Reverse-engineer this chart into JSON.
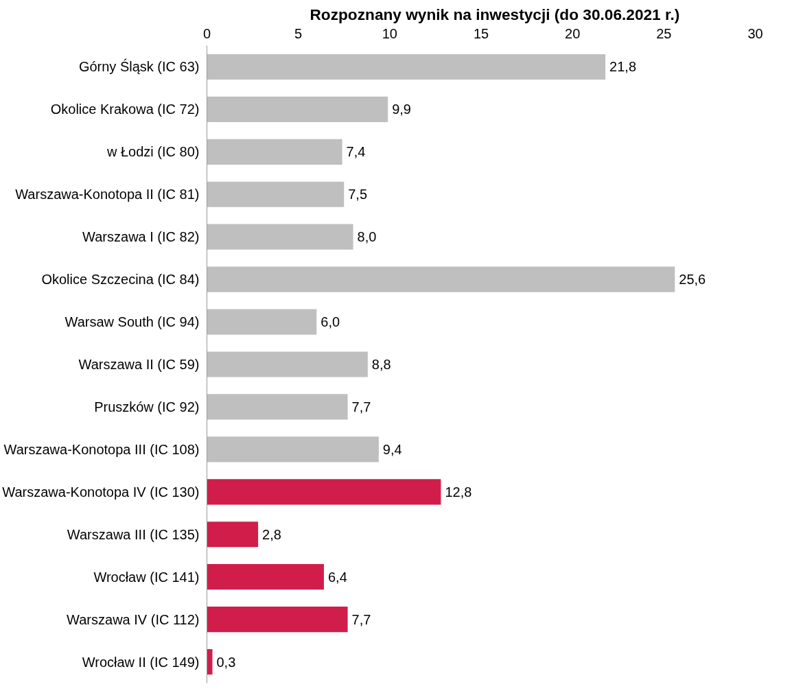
{
  "chart_data": {
    "type": "bar",
    "orientation": "horizontal",
    "title": "Rozpoznany wynik na inwestycji (do 30.06.2021 r.)",
    "categories": [
      "Górny Śląsk (IC 63)",
      "Okolice Krakowa (IC 72)",
      "w Łodzi (IC 80)",
      "Warszawa-Konotopa II (IC 81)",
      "Warszawa I (IC 82)",
      "Okolice Szczecina (IC 84)",
      "Warsaw South (IC 94)",
      "Warszawa II (IC 59)",
      "Pruszków (IC 92)",
      "Warszawa-Konotopa III (IC 108)",
      "Warszawa-Konotopa IV (IC 130)",
      "Warszawa III (IC 135)",
      "Wrocław (IC 141)",
      "Warszawa IV (IC 112)",
      "Wrocław II (IC 149)"
    ],
    "values": [
      21.8,
      9.9,
      7.4,
      7.5,
      8.0,
      25.6,
      6.0,
      8.8,
      7.7,
      9.4,
      12.8,
      2.8,
      6.4,
      7.7,
      0.3
    ],
    "value_labels": [
      "21,8",
      "9,9",
      "7,4",
      "7,5",
      "8,0",
      "25,6",
      "6,0",
      "8,8",
      "7,7",
      "9,4",
      "12,8",
      "2,8",
      "6,4",
      "7,7",
      "0,3"
    ],
    "colors": [
      "#bfbfbf",
      "#bfbfbf",
      "#bfbfbf",
      "#bfbfbf",
      "#bfbfbf",
      "#bfbfbf",
      "#bfbfbf",
      "#bfbfbf",
      "#bfbfbf",
      "#bfbfbf",
      "#d11d4a",
      "#d11d4a",
      "#d11d4a",
      "#d11d4a",
      "#d11d4a"
    ],
    "xlim": [
      0,
      30
    ],
    "xticks": [
      0,
      5,
      10,
      15,
      20,
      25,
      30
    ],
    "grid": false
  }
}
